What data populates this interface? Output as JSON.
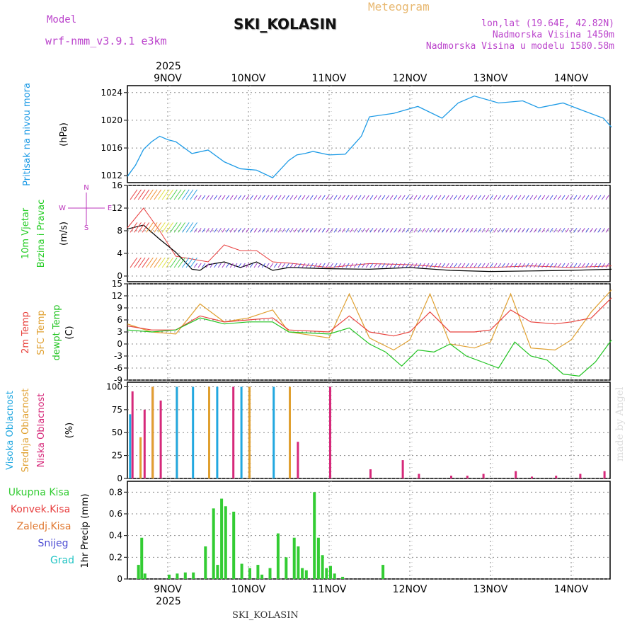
{
  "header": {
    "model_label": "Model",
    "model_value": "wrf-nmm_v3.9.1 e3km",
    "chart_kind": "Meteogram",
    "station": "SKI_KOLASIN",
    "coords": "lon,lat (19.64E, 42.82N)",
    "elevation": "Nadmorska Visina 1450m",
    "model_elevation": "Nadmorska Visina u modelu 1580.58m",
    "footer_station": "SKI_KOLASIN",
    "watermark": "made by Angel"
  },
  "colors": {
    "pressure": "#1e9be6",
    "temp2m": "#e8413c",
    "sfc": "#e0a030",
    "dew": "#22c422",
    "precip_total": "#33cc33",
    "precip_conv": "#e84040",
    "precip_ice": "#e07830",
    "snow": "#4b4bd2",
    "hail": "#22c4c4",
    "cloud_high": "#22a8e0",
    "cloud_mid": "#e0a030",
    "cloud_low": "#d6297a",
    "wind_label": "#22cc22",
    "dir_label": "#bb33bb"
  },
  "chart_data": [
    {
      "type": "line",
      "title": "Pritisak na nivou mora",
      "ylabel": "(hPa)",
      "ylim": [
        1011,
        1025
      ],
      "yticks": [
        "1012",
        "1016",
        "1020",
        "1024"
      ],
      "x_dates_top": [
        "9NOV",
        "10NOV",
        "11NOV",
        "12NOV",
        "13NOV",
        "14NOV"
      ],
      "year_top": "2025",
      "series": [
        {
          "name": "pressure",
          "x": [
            0,
            0.1,
            0.2,
            0.3,
            0.4,
            0.5,
            0.6,
            0.8,
            1.0,
            1.2,
            1.4,
            1.6,
            1.8,
            2.0,
            2.1,
            2.2,
            2.3,
            2.5,
            2.7,
            2.9,
            3.0,
            3.3,
            3.6,
            3.9,
            4.1,
            4.3,
            4.6,
            4.9,
            5.1,
            5.4,
            5.6,
            5.9,
            6.0
          ],
          "values": [
            1011.9,
            1013.5,
            1015.8,
            1016.9,
            1017.7,
            1017.2,
            1016.9,
            1015.2,
            1015.7,
            1014.0,
            1013.0,
            1012.8,
            1011.7,
            1014.2,
            1015.0,
            1015.2,
            1015.5,
            1015.0,
            1015.1,
            1017.7,
            1020.5,
            1021.0,
            1022.0,
            1020.3,
            1022.5,
            1023.5,
            1022.5,
            1022.8,
            1021.8,
            1022.5,
            1021.6,
            1020.3,
            1019.0
          ]
        }
      ]
    },
    {
      "type": "line",
      "title": "10m Vjetar",
      "subtitle": "Brzina i Pravac",
      "ylabel": "(m/s)",
      "ylim": [
        -1,
        16
      ],
      "yticks": [
        "0",
        "4",
        "8",
        "12",
        "16"
      ],
      "compass": [
        "N",
        "E",
        "W",
        "S"
      ],
      "series": [
        {
          "name": "speed",
          "x": [
            0,
            0.2,
            0.4,
            0.6,
            0.8,
            0.9,
            1.0,
            1.2,
            1.4,
            1.6,
            1.8,
            2.0,
            2.5,
            3.0,
            3.5,
            4.0,
            4.5,
            5.0,
            5.5,
            6.0
          ],
          "values": [
            8.3,
            9.0,
            6.5,
            4.2,
            1.2,
            1.0,
            2.0,
            2.5,
            1.5,
            2.5,
            1.0,
            1.5,
            1.3,
            1.2,
            1.5,
            1.0,
            0.8,
            0.9,
            1.0,
            1.2
          ]
        },
        {
          "name": "gust",
          "x": [
            0,
            0.2,
            0.4,
            0.6,
            0.8,
            1.0,
            1.1,
            1.2,
            1.4,
            1.6,
            1.8,
            2.0,
            2.5,
            3.0,
            3.5,
            4.0,
            4.5,
            5.0,
            5.5,
            6.0
          ],
          "values": [
            8.5,
            12.0,
            8.0,
            3.5,
            3.0,
            2.5,
            4.0,
            5.5,
            4.5,
            4.5,
            2.5,
            2.3,
            1.5,
            2.2,
            2.0,
            1.5,
            1.5,
            1.8,
            1.5,
            1.8
          ]
        }
      ]
    },
    {
      "type": "line",
      "title": "2m Temp",
      "ylabel": "(C)",
      "ylim": [
        -9,
        15
      ],
      "yticks": [
        "-9",
        "-6",
        "-3",
        "0",
        "3",
        "6",
        "9",
        "12",
        "15"
      ],
      "legend": [
        "2m Temp",
        "SFC Temp",
        "dewpt Temp"
      ],
      "series": [
        {
          "name": "2m Temp",
          "x": [
            0,
            0.3,
            0.6,
            0.9,
            1.2,
            1.5,
            1.8,
            2.0,
            2.5,
            2.75,
            3.0,
            3.3,
            3.5,
            3.75,
            4.0,
            4.3,
            4.5,
            4.75,
            5.0,
            5.3,
            5.5,
            5.75,
            6.0
          ],
          "values": [
            4.5,
            3.5,
            3.5,
            7.0,
            5.5,
            6.0,
            6.5,
            3.5,
            3.0,
            7.0,
            3.0,
            2.0,
            3.0,
            8.0,
            3.0,
            3.0,
            3.5,
            8.5,
            5.5,
            5.0,
            5.5,
            6.5,
            11.5
          ]
        },
        {
          "name": "SFC Temp",
          "x": [
            0,
            0.3,
            0.6,
            0.9,
            1.2,
            1.5,
            1.8,
            2.0,
            2.5,
            2.75,
            3.0,
            3.3,
            3.5,
            3.75,
            4.0,
            4.3,
            4.5,
            4.75,
            5.0,
            5.3,
            5.5,
            5.75,
            6.0
          ],
          "values": [
            5.0,
            3.0,
            2.5,
            10.0,
            5.5,
            6.5,
            8.5,
            3.0,
            1.5,
            12.5,
            1.5,
            -1.5,
            1.0,
            12.5,
            0.0,
            -1.0,
            0.5,
            12.5,
            -1.0,
            -1.5,
            1.0,
            8.0,
            13.5
          ]
        },
        {
          "name": "dewpt Temp",
          "x": [
            0,
            0.3,
            0.6,
            0.9,
            1.2,
            1.5,
            1.8,
            2.0,
            2.5,
            2.75,
            3.0,
            3.2,
            3.4,
            3.6,
            3.8,
            4.0,
            4.2,
            4.4,
            4.6,
            4.8,
            5.0,
            5.2,
            5.4,
            5.6,
            5.8,
            6.0
          ],
          "values": [
            3.5,
            3.0,
            3.5,
            6.5,
            5.0,
            5.5,
            5.5,
            3.0,
            2.5,
            4.0,
            0.0,
            -2.0,
            -5.5,
            -1.5,
            -2.0,
            0.0,
            -3.0,
            -4.5,
            -6.0,
            0.5,
            -3.0,
            -4.0,
            -7.5,
            -8.0,
            -4.5,
            1.0
          ]
        }
      ]
    },
    {
      "type": "bar",
      "title": "Oblacnost",
      "ylabel": "(%)",
      "ylim": [
        0,
        105
      ],
      "yticks": [
        "0",
        "25",
        "50",
        "75",
        "100"
      ],
      "legend": [
        "Visoka Oblacnost",
        "Srednja Oblacnost",
        "Niska Oblacnost"
      ],
      "series": [
        {
          "name": "Niska",
          "x": [
            0.05,
            0.2,
            0.3,
            0.4,
            1.0,
            1.3,
            2.1,
            2.5,
            3.0,
            3.4,
            3.6,
            4.0,
            4.2,
            4.4,
            4.8,
            5.0,
            5.3,
            5.6,
            5.9
          ],
          "values": [
            95,
            75,
            100,
            85,
            100,
            100,
            40,
            100,
            10,
            20,
            5,
            3,
            3,
            5,
            8,
            2,
            3,
            5,
            8
          ]
        },
        {
          "name": "Srednja",
          "x": [
            0.15,
            0.3,
            0.6,
            1.0,
            1.5,
            2.0,
            2.3
          ],
          "values": [
            45,
            100,
            100,
            100,
            100,
            100,
            0
          ]
        },
        {
          "name": "Visoka",
          "x": [
            0.02,
            0.6,
            0.8,
            1.1,
            1.4,
            1.8,
            2.0
          ],
          "values": [
            70,
            100,
            100,
            100,
            100,
            100,
            0
          ]
        }
      ]
    },
    {
      "type": "bar",
      "title": "1hr Precip",
      "ylabel": "1hr Precip (mm)",
      "ylim": [
        0,
        0.9
      ],
      "yticks": [
        "0",
        "0.2",
        "0.4",
        "0.6",
        "0.8"
      ],
      "legend": [
        "Ukupna Kisa",
        "Konvek.Kisa",
        "Zaledj.Kisa",
        "Snijeg",
        "Grad"
      ],
      "x_dates_bottom": [
        "9NOV",
        "10NOV",
        "11NOV",
        "12NOV",
        "13NOV",
        "14NOV"
      ],
      "year_bottom": "2025",
      "x": [
        0.12,
        0.16,
        0.2,
        0.5,
        0.6,
        0.7,
        0.8,
        0.95,
        1.05,
        1.1,
        1.15,
        1.2,
        1.3,
        1.4,
        1.5,
        1.6,
        1.65,
        1.75,
        1.85,
        1.95,
        2.05,
        2.1,
        2.15,
        2.2,
        2.3,
        2.35,
        2.4,
        2.45,
        2.5,
        2.55,
        2.65,
        3.15
      ],
      "values": [
        0.13,
        0.38,
        0.05,
        0.04,
        0.05,
        0.06,
        0.06,
        0.3,
        0.65,
        0.13,
        0.74,
        0.67,
        0.62,
        0.14,
        0.1,
        0.13,
        0.04,
        0.1,
        0.42,
        0.2,
        0.38,
        0.3,
        0.1,
        0.08,
        0.8,
        0.38,
        0.22,
        0.1,
        0.12,
        0.05,
        0.02,
        0.13
      ]
    }
  ]
}
